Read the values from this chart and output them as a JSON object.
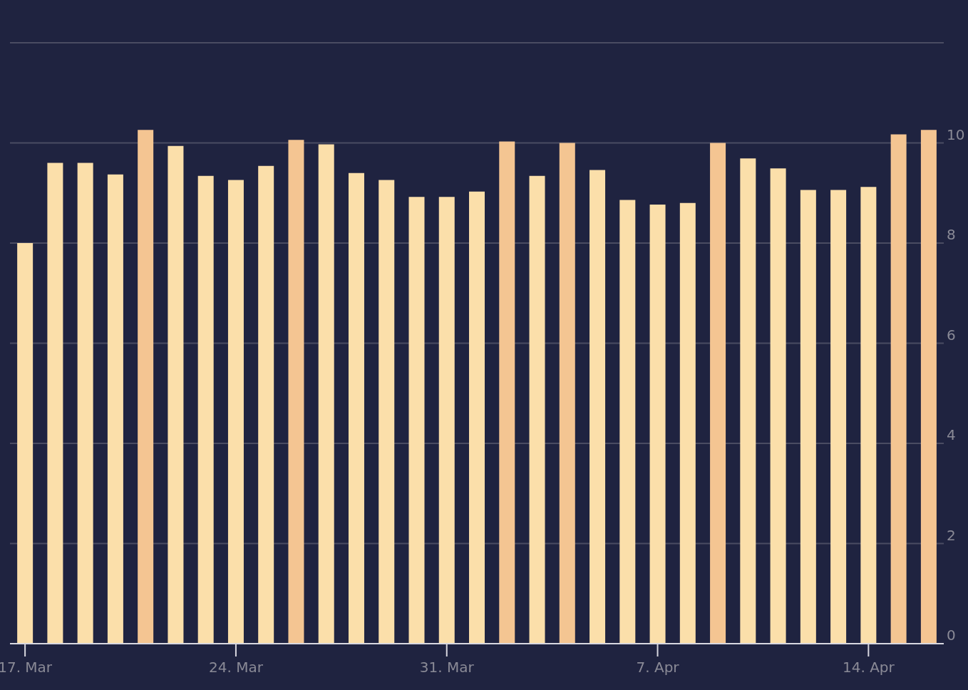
{
  "chart_data": {
    "type": "bar",
    "categories": [
      "17. Mar",
      null,
      null,
      null,
      null,
      null,
      null,
      "24. Mar",
      null,
      null,
      null,
      null,
      null,
      null,
      "31. Mar",
      null,
      null,
      null,
      null,
      null,
      null,
      "7. Apr",
      null,
      null,
      null,
      null,
      null,
      null,
      "14. Apr",
      null,
      null
    ],
    "values": [
      8.0,
      9.6,
      9.6,
      9.37,
      10.26,
      9.94,
      9.34,
      9.26,
      9.54,
      10.06,
      9.97,
      9.4,
      9.26,
      8.92,
      8.92,
      9.03,
      10.03,
      9.34,
      10.0,
      9.46,
      8.86,
      8.77,
      8.8,
      10.0,
      9.69,
      9.49,
      9.06,
      9.06,
      9.12,
      10.17,
      10.26
    ],
    "colors": [
      "#fbdfaa",
      "#fbdfaa",
      "#fbdfaa",
      "#fbdfaa",
      "#f4c592",
      "#fbdfaa",
      "#fbdfaa",
      "#fbdfaa",
      "#fbdfaa",
      "#f4c592",
      "#fbdfaa",
      "#fbdfaa",
      "#fbdfaa",
      "#fbdfaa",
      "#fbdfaa",
      "#fbdfaa",
      "#f4c592",
      "#fbdfaa",
      "#f4c592",
      "#fbdfaa",
      "#fbdfaa",
      "#fbdfaa",
      "#fbdfaa",
      "#f4c592",
      "#fbdfaa",
      "#fbdfaa",
      "#fbdfaa",
      "#fbdfaa",
      "#fbdfaa",
      "#f4c592",
      "#f4c592"
    ],
    "ylim": [
      0,
      12
    ],
    "yticks": [
      0,
      2,
      4,
      6,
      8,
      10,
      {
        "value": 12,
        "label": null
      }
    ],
    "grid": "y"
  }
}
